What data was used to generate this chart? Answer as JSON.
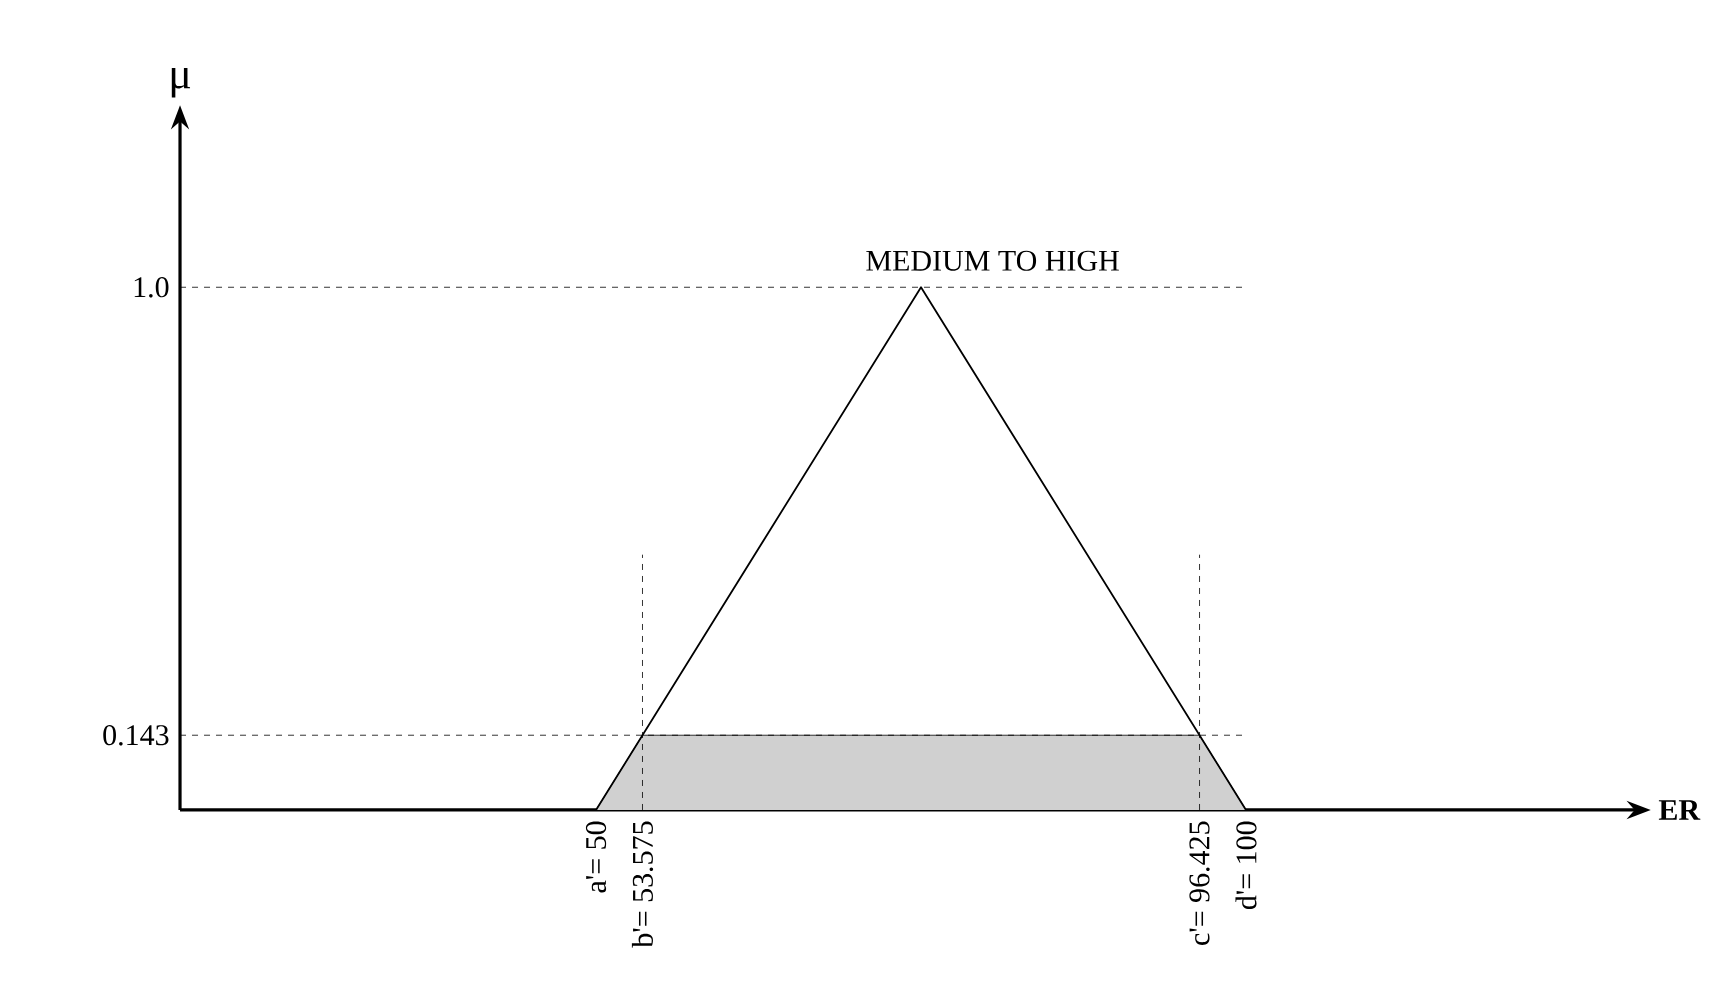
{
  "chart_data": {
    "type": "line",
    "xlabel": "ER",
    "ylabel": "μ",
    "xlim": [
      18,
      130
    ],
    "ylim": [
      0,
      1.32
    ],
    "xticks": [
      {
        "value": 50,
        "label": "a'= 50"
      },
      {
        "value": 53.575,
        "label": "b'= 53.575"
      },
      {
        "value": 96.425,
        "label": "c'= 96.425"
      },
      {
        "value": 100,
        "label": "d'= 100"
      }
    ],
    "yticks": [
      {
        "value": 0.143,
        "label": "0.143"
      },
      {
        "value": 1,
        "label": "1.0"
      }
    ],
    "series": [
      {
        "type": "area",
        "color": "#d0d0d0",
        "x": [
          50,
          53.575,
          96.425,
          100
        ],
        "values": [
          0,
          0.143,
          0.143,
          0
        ]
      },
      {
        "color": "#000000",
        "x": [
          50,
          75,
          100
        ],
        "values": [
          0,
          1,
          0
        ]
      }
    ],
    "ref_lines": [
      {
        "axis": "y",
        "value": 1,
        "line_style": "dashed"
      },
      {
        "axis": "y",
        "value": 0.143,
        "line_style": "dashed"
      },
      {
        "axis": "x",
        "value": 53.575,
        "line_style": "dashed"
      },
      {
        "axis": "x",
        "value": 96.425,
        "line_style": "dashed"
      }
    ],
    "annotations": [
      {
        "text": "MEDIUM TO HIGH",
        "x": 75,
        "y": 1
      }
    ]
  }
}
